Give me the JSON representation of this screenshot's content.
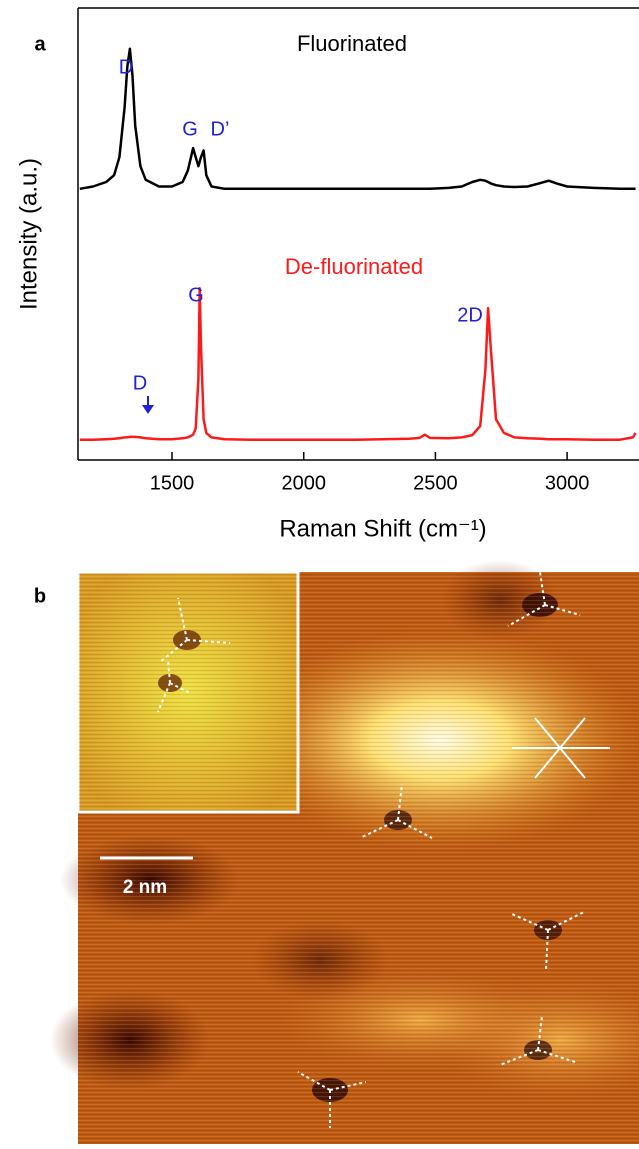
{
  "chart_data": {
    "type": "line",
    "panel_label": "a",
    "x_label": "Raman Shift (cm⁻¹)",
    "y_label": "Intensity (a.u.)",
    "x": [
      1150,
      1200,
      1250,
      1280,
      1300,
      1320,
      1330,
      1340,
      1350,
      1360,
      1380,
      1400,
      1450,
      1500,
      1540,
      1560,
      1580,
      1590,
      1600,
      1605,
      1610,
      1620,
      1630,
      1650,
      1700,
      1800,
      1900,
      2000,
      2100,
      2200,
      2300,
      2400,
      2440,
      2460,
      2480,
      2550,
      2600,
      2640,
      2670,
      2690,
      2700,
      2710,
      2730,
      2760,
      2800,
      2850,
      2900,
      2930,
      2960,
      3000,
      3100,
      3200,
      3250,
      3260
    ],
    "series": [
      {
        "name": "Fluorinated",
        "color": "#000000",
        "values": [
          60,
          60.5,
          61.5,
          63,
          67,
          78,
          87,
          91,
          85,
          74,
          65,
          62,
          60.5,
          60.5,
          61.5,
          64,
          69,
          67,
          65,
          66,
          67,
          68.5,
          63,
          60.5,
          60,
          60,
          60,
          60,
          60,
          60,
          60,
          60,
          60,
          60,
          60,
          60.2,
          60.5,
          61.5,
          62,
          61.8,
          61.5,
          61.2,
          60.8,
          60.5,
          60.4,
          60.5,
          61.3,
          61.8,
          61.2,
          60.5,
          60.2,
          60,
          60,
          60
        ]
      },
      {
        "name": "De-fluorinated",
        "color": "#ff1a1a",
        "values": [
          4.5,
          4.5,
          4.6,
          4.7,
          4.8,
          5,
          5,
          5.1,
          5.1,
          5.1,
          5,
          4.8,
          4.6,
          4.6,
          4.8,
          5,
          5.6,
          7,
          18,
          38,
          25,
          9,
          6,
          5,
          4.6,
          4.5,
          4.5,
          4.5,
          4.5,
          4.5,
          4.6,
          4.7,
          4.9,
          5.6,
          4.9,
          4.8,
          5,
          5.5,
          7.5,
          20,
          33.6,
          25,
          9,
          6,
          5,
          4.8,
          4.7,
          4.6,
          4.6,
          4.6,
          4.5,
          4.5,
          5,
          6
        ]
      }
    ],
    "annotations": [
      {
        "text": "D",
        "color": "#2020dd"
      },
      {
        "text": "G",
        "color": "#2020dd"
      },
      {
        "text": "D’",
        "color": "#2020dd"
      },
      {
        "text": "G",
        "color": "#2020dd"
      },
      {
        "text": "2D",
        "color": "#2020dd"
      },
      {
        "text": "D",
        "color": "#2020dd"
      }
    ],
    "xlim": [
      1143,
      3273
    ],
    "ylim": [
      0,
      100
    ],
    "xticks": [
      1500,
      2000,
      2500,
      3000
    ]
  },
  "image": {
    "panel_label": "b",
    "scale_bar": "2 nm"
  }
}
